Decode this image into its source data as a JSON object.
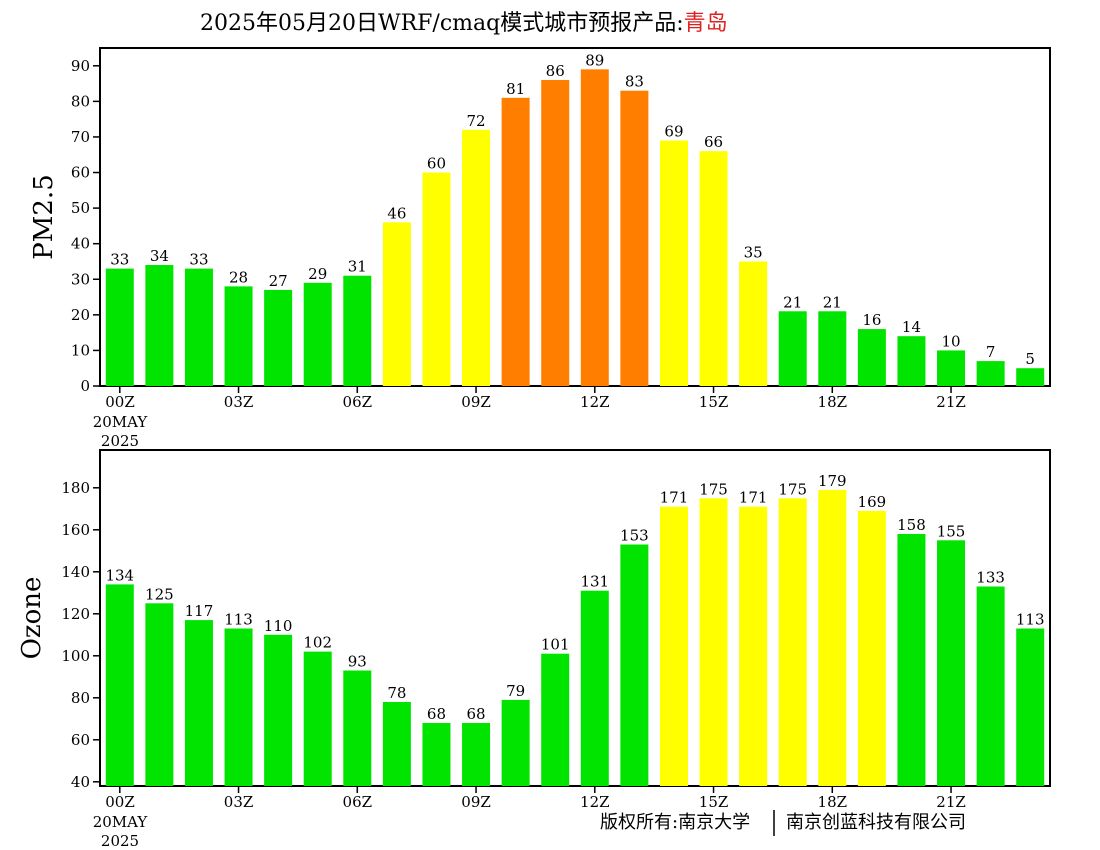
{
  "title": {
    "main": "2025年05月20日WRF/cmaq模式城市预报产品:",
    "city": "青岛"
  },
  "copyright": {
    "left": "版权所有:南京大学",
    "right": "南京创蓝科技有限公司"
  },
  "colors": {
    "good": "#00e400",
    "moderate": "#ffff00",
    "unhealthy_sensitive": "#ff7e00",
    "city_title": "#e02020"
  },
  "x_axis": {
    "tick_labels": [
      "00Z",
      "03Z",
      "06Z",
      "09Z",
      "12Z",
      "15Z",
      "18Z",
      "21Z"
    ],
    "date_line1": "20MAY",
    "date_line2": "2025"
  },
  "chart_data": [
    {
      "type": "bar",
      "ylabel": "PM2.5",
      "ylim": [
        0,
        95
      ],
      "yticks": [
        0,
        10,
        20,
        30,
        40,
        50,
        60,
        70,
        80,
        90
      ],
      "hours": [
        0,
        1,
        2,
        3,
        4,
        5,
        6,
        7,
        8,
        9,
        10,
        11,
        12,
        13,
        14,
        15,
        16,
        17,
        18,
        19,
        20,
        21,
        22,
        23
      ],
      "values": [
        33,
        34,
        33,
        28,
        27,
        29,
        31,
        46,
        60,
        72,
        81,
        86,
        89,
        83,
        69,
        66,
        35,
        21,
        21,
        16,
        14,
        10,
        7,
        5
      ],
      "levels": [
        "good",
        "good",
        "good",
        "good",
        "good",
        "good",
        "good",
        "moderate",
        "moderate",
        "moderate",
        "unhealthy_sensitive",
        "unhealthy_sensitive",
        "unhealthy_sensitive",
        "unhealthy_sensitive",
        "moderate",
        "moderate",
        "moderate",
        "good",
        "good",
        "good",
        "good",
        "good",
        "good",
        "good"
      ]
    },
    {
      "type": "bar",
      "ylabel": "Ozone",
      "ylim": [
        38,
        198
      ],
      "yticks": [
        40,
        60,
        80,
        100,
        120,
        140,
        160,
        180
      ],
      "hours": [
        0,
        1,
        2,
        3,
        4,
        5,
        6,
        7,
        8,
        9,
        10,
        11,
        12,
        13,
        14,
        15,
        16,
        17,
        18,
        19,
        20,
        21,
        22,
        23
      ],
      "values": [
        134,
        125,
        117,
        113,
        110,
        102,
        93,
        78,
        68,
        68,
        79,
        101,
        131,
        153,
        171,
        175,
        171,
        175,
        179,
        169,
        158,
        155,
        133,
        113
      ],
      "levels": [
        "good",
        "good",
        "good",
        "good",
        "good",
        "good",
        "good",
        "good",
        "good",
        "good",
        "good",
        "good",
        "good",
        "good",
        "moderate",
        "moderate",
        "moderate",
        "moderate",
        "moderate",
        "moderate",
        "good",
        "good",
        "good",
        "good"
      ]
    }
  ]
}
